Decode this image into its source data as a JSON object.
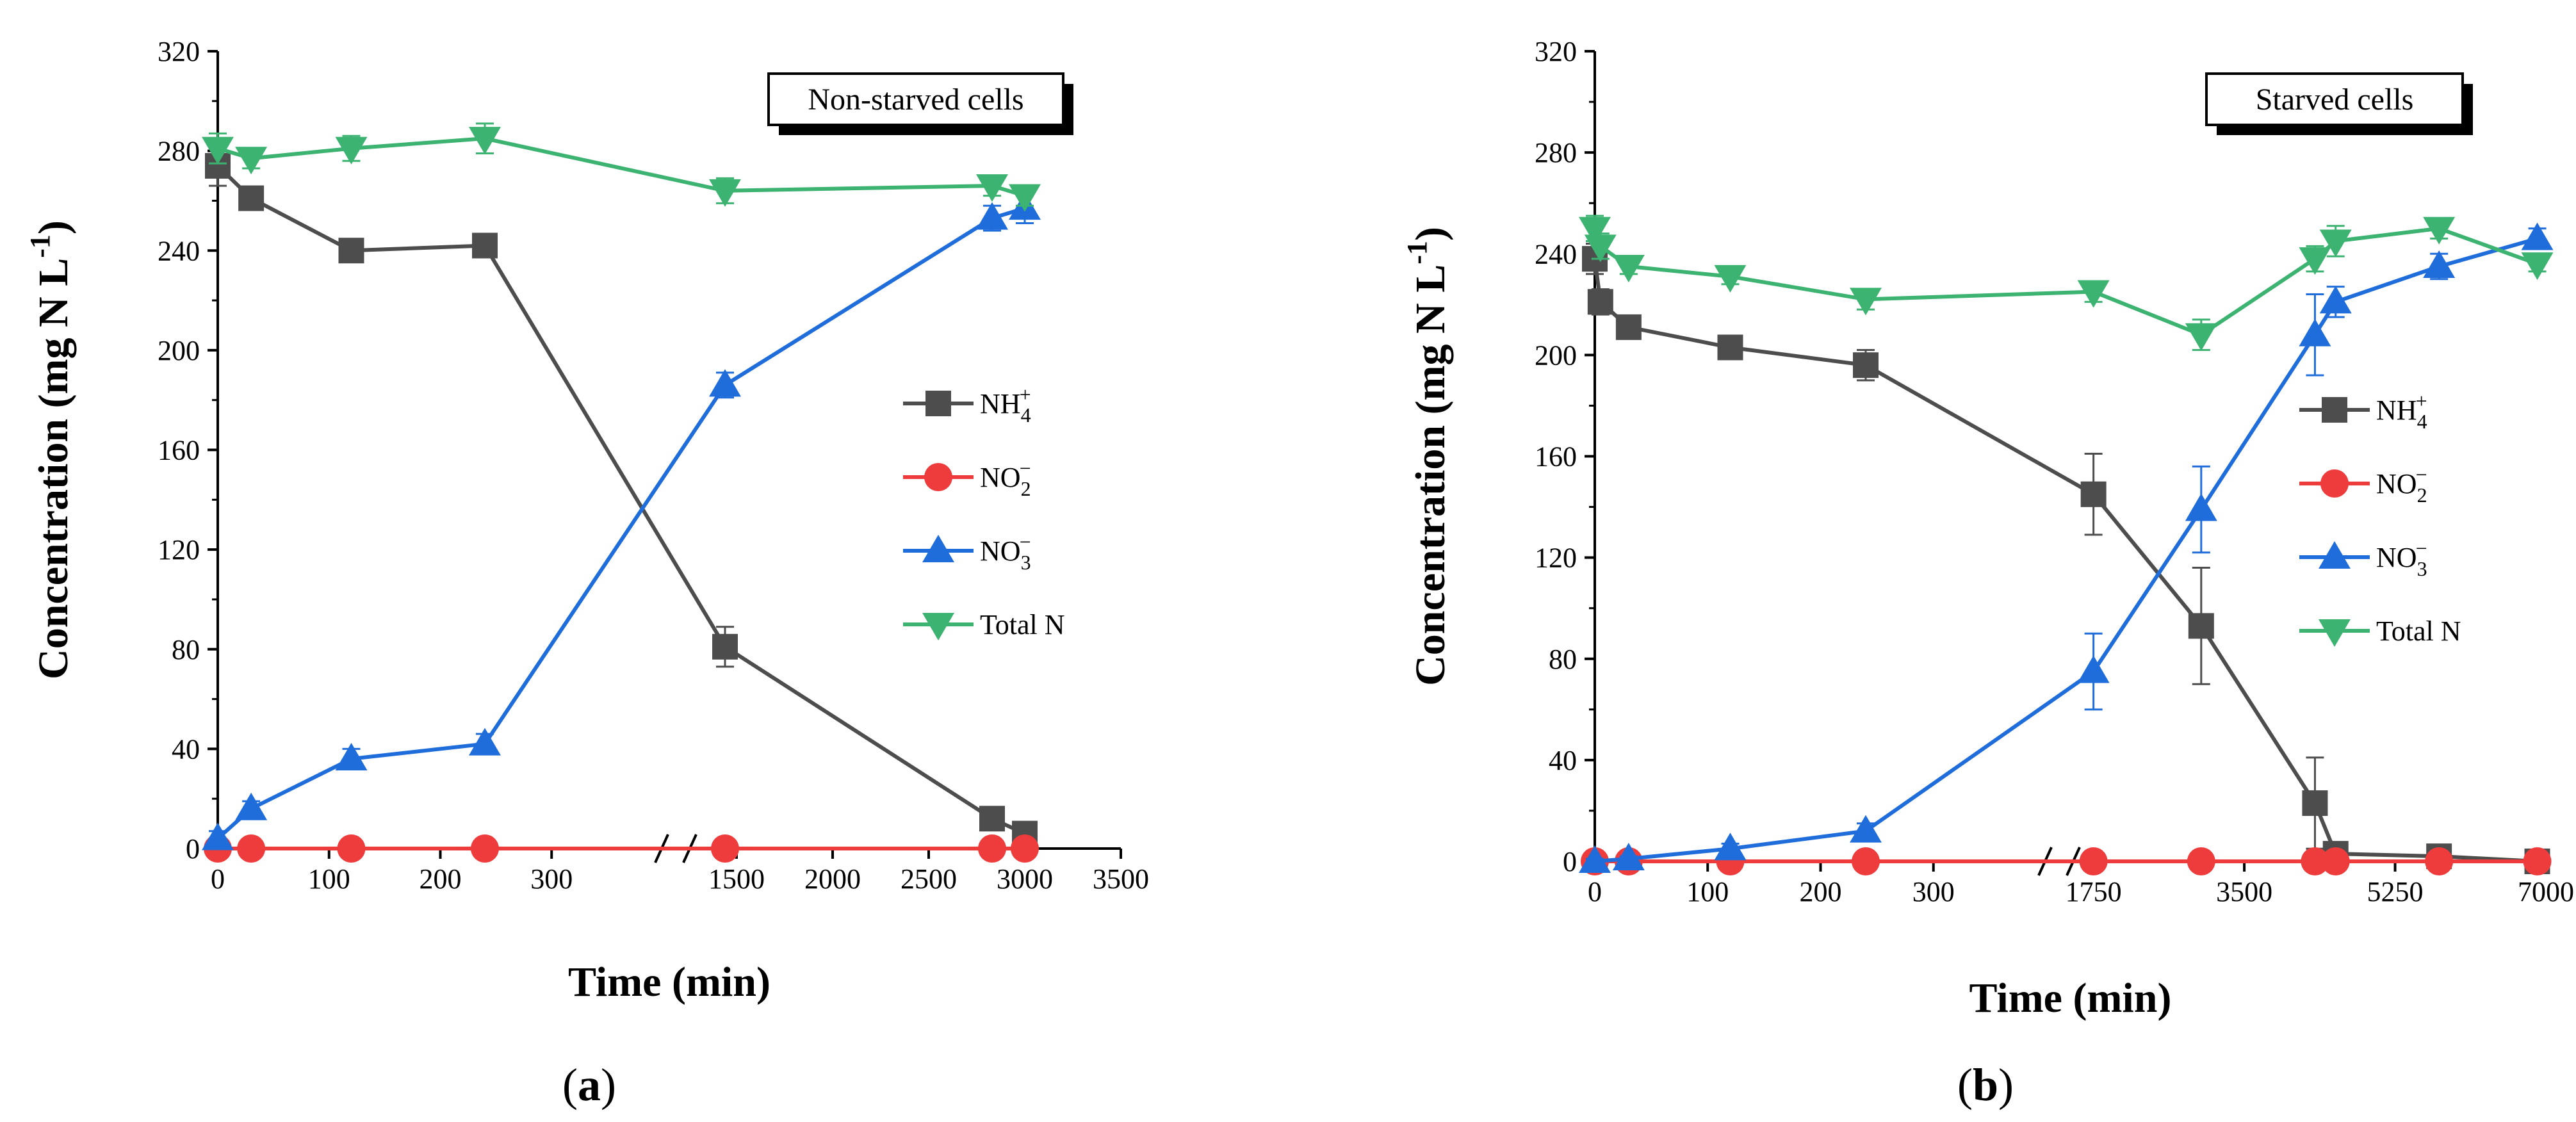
{
  "chart_data": [
    {
      "type": "line",
      "panel_label": "(a)",
      "title": "Non-starved cells",
      "xlabel": "Time (min)",
      "ylabel": "Concentration (mg N L-1)",
      "ylabel_parts": [
        "Concentration (mg N L",
        "-1",
        ")"
      ],
      "ylim": [
        0,
        320
      ],
      "yticks": [
        0,
        40,
        80,
        120,
        160,
        200,
        240,
        280,
        320
      ],
      "x_break": true,
      "xticks_seg1": [
        0,
        100,
        200,
        300
      ],
      "xticks_seg2": [
        1500,
        2000,
        2500,
        3000,
        3500
      ],
      "seg1_range": [
        0,
        400
      ],
      "seg2_range": [
        1250,
        3500
      ],
      "legend_position": "right-middle",
      "series": [
        {
          "name": "NH4+",
          "label_base": "NH",
          "label_sub": "4",
          "label_sup": "+",
          "marker": "square",
          "color": "#4d4d4d",
          "x": [
            0,
            30,
            120,
            240,
            1440,
            2830,
            3000
          ],
          "y": [
            274,
            261,
            240,
            242,
            81,
            12,
            6
          ],
          "err": [
            8,
            4,
            3,
            3,
            8,
            3,
            3
          ]
        },
        {
          "name": "NO2-",
          "label_base": "NO",
          "label_sub": "2",
          "label_sup": "−",
          "marker": "circle",
          "color": "#ee3b3b",
          "x": [
            0,
            30,
            120,
            240,
            1440,
            2830,
            3000
          ],
          "y": [
            0,
            0,
            0,
            0,
            0,
            0,
            0
          ],
          "err": [
            0,
            0,
            0,
            0,
            0,
            0,
            0
          ]
        },
        {
          "name": "NO3-",
          "label_base": "NO",
          "label_sub": "3",
          "label_sup": "−",
          "marker": "triangle-up",
          "color": "#1f6ddb",
          "x": [
            0,
            30,
            120,
            240,
            1440,
            2830,
            3000
          ],
          "y": [
            4,
            16,
            36,
            42,
            186,
            253,
            257
          ],
          "err": [
            3,
            3,
            4,
            4,
            5,
            5,
            6
          ]
        },
        {
          "name": "Total N",
          "label_base": "Total N",
          "label_sub": "",
          "label_sup": "",
          "marker": "triangle-down",
          "color": "#3cb371",
          "x": [
            0,
            30,
            120,
            240,
            1440,
            2830,
            3000
          ],
          "y": [
            281,
            277,
            281,
            285,
            264,
            266,
            262
          ],
          "err": [
            6,
            4,
            5,
            6,
            5,
            4,
            4
          ]
        }
      ]
    },
    {
      "type": "line",
      "panel_label": "(b)",
      "title": "Starved cells",
      "xlabel": "Time (min)",
      "ylabel": "Concentration (mg N L-1)",
      "ylabel_parts": [
        "Concentration (mg N L",
        "-1",
        ")"
      ],
      "ylim": [
        0,
        320
      ],
      "yticks": [
        0,
        40,
        80,
        120,
        160,
        200,
        240,
        280,
        320
      ],
      "x_break": true,
      "xticks_seg1": [
        0,
        100,
        200,
        300
      ],
      "xticks_seg2": [
        1750,
        3500,
        5250,
        7000
      ],
      "seg1_range": [
        0,
        400
      ],
      "seg2_range": [
        1500,
        7000
      ],
      "legend_position": "right-middle",
      "series": [
        {
          "name": "NH4+",
          "label_base": "NH",
          "label_sub": "4",
          "label_sup": "+",
          "marker": "square",
          "color": "#4d4d4d",
          "x": [
            0,
            5,
            30,
            120,
            240,
            1750,
            3000,
            4320,
            4560,
            5760,
            6900
          ],
          "y": [
            238,
            221,
            211,
            203,
            196,
            145,
            93,
            23,
            3,
            2,
            0
          ],
          "err": [
            6,
            5,
            3,
            3,
            6,
            16,
            23,
            18,
            3,
            2,
            1
          ]
        },
        {
          "name": "NO2-",
          "label_base": "NO",
          "label_sub": "2",
          "label_sup": "−",
          "marker": "circle",
          "color": "#ee3b3b",
          "x": [
            0,
            30,
            120,
            240,
            1750,
            3000,
            4320,
            4560,
            5760,
            6900
          ],
          "y": [
            0,
            0,
            0,
            0,
            0,
            0,
            0,
            0,
            0,
            0
          ],
          "err": [
            0,
            0,
            0,
            0,
            0,
            0,
            0,
            0,
            0,
            0
          ]
        },
        {
          "name": "NO3-",
          "label_base": "NO",
          "label_sub": "3",
          "label_sup": "−",
          "marker": "triangle-up",
          "color": "#1f6ddb",
          "x": [
            0,
            30,
            120,
            240,
            1750,
            3000,
            4320,
            4560,
            5760,
            6900
          ],
          "y": [
            0,
            1,
            5,
            12,
            75,
            139,
            208,
            221,
            235,
            246
          ],
          "err": [
            1,
            1,
            2,
            3,
            15,
            17,
            16,
            6,
            5,
            4
          ]
        },
        {
          "name": "Total N",
          "label_base": "Total N",
          "label_sub": "",
          "label_sup": "",
          "marker": "triangle-down",
          "color": "#3cb371",
          "x": [
            0,
            5,
            30,
            120,
            240,
            1750,
            3000,
            4320,
            4560,
            5760,
            6900
          ],
          "y": [
            250,
            243,
            235,
            231,
            222,
            225,
            208,
            238,
            245,
            250,
            236
          ],
          "err": [
            5,
            5,
            3,
            3,
            4,
            4,
            6,
            5,
            6,
            4,
            3
          ]
        }
      ]
    }
  ]
}
